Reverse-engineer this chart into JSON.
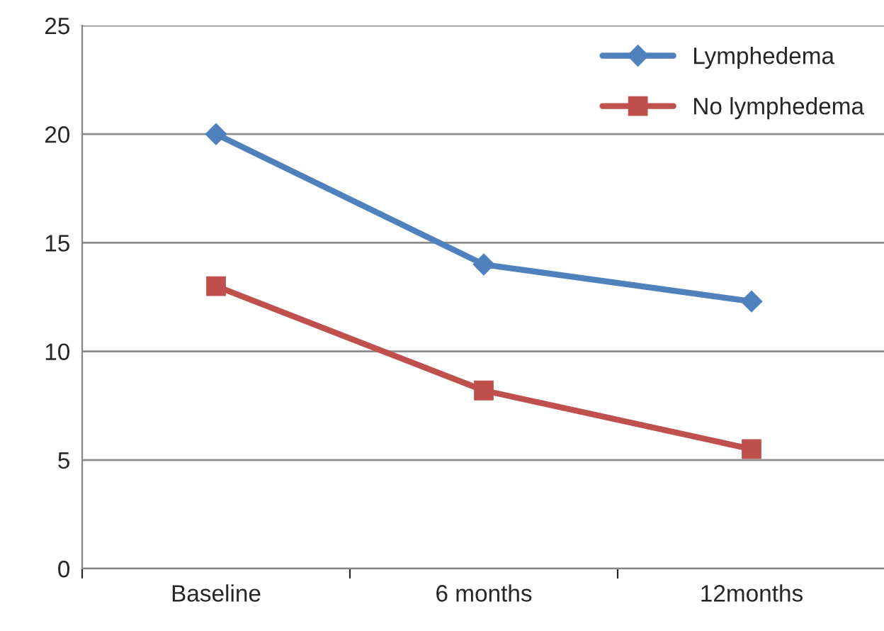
{
  "chart_data": {
    "type": "line",
    "categories": [
      "Baseline",
      "6 months",
      "12months"
    ],
    "series": [
      {
        "name": "Lymphedema",
        "color": "#4f81bd",
        "marker": "diamond",
        "values": [
          20.0,
          14.0,
          12.3
        ]
      },
      {
        "name": "No lymphedema",
        "color": "#c0504d",
        "marker": "square",
        "values": [
          13.0,
          8.2,
          5.5
        ]
      }
    ],
    "ylim": [
      0,
      25
    ],
    "yticks": [
      0,
      5,
      10,
      15,
      20,
      25
    ],
    "grid": "y",
    "legend": "top right",
    "line_style": "solid"
  }
}
